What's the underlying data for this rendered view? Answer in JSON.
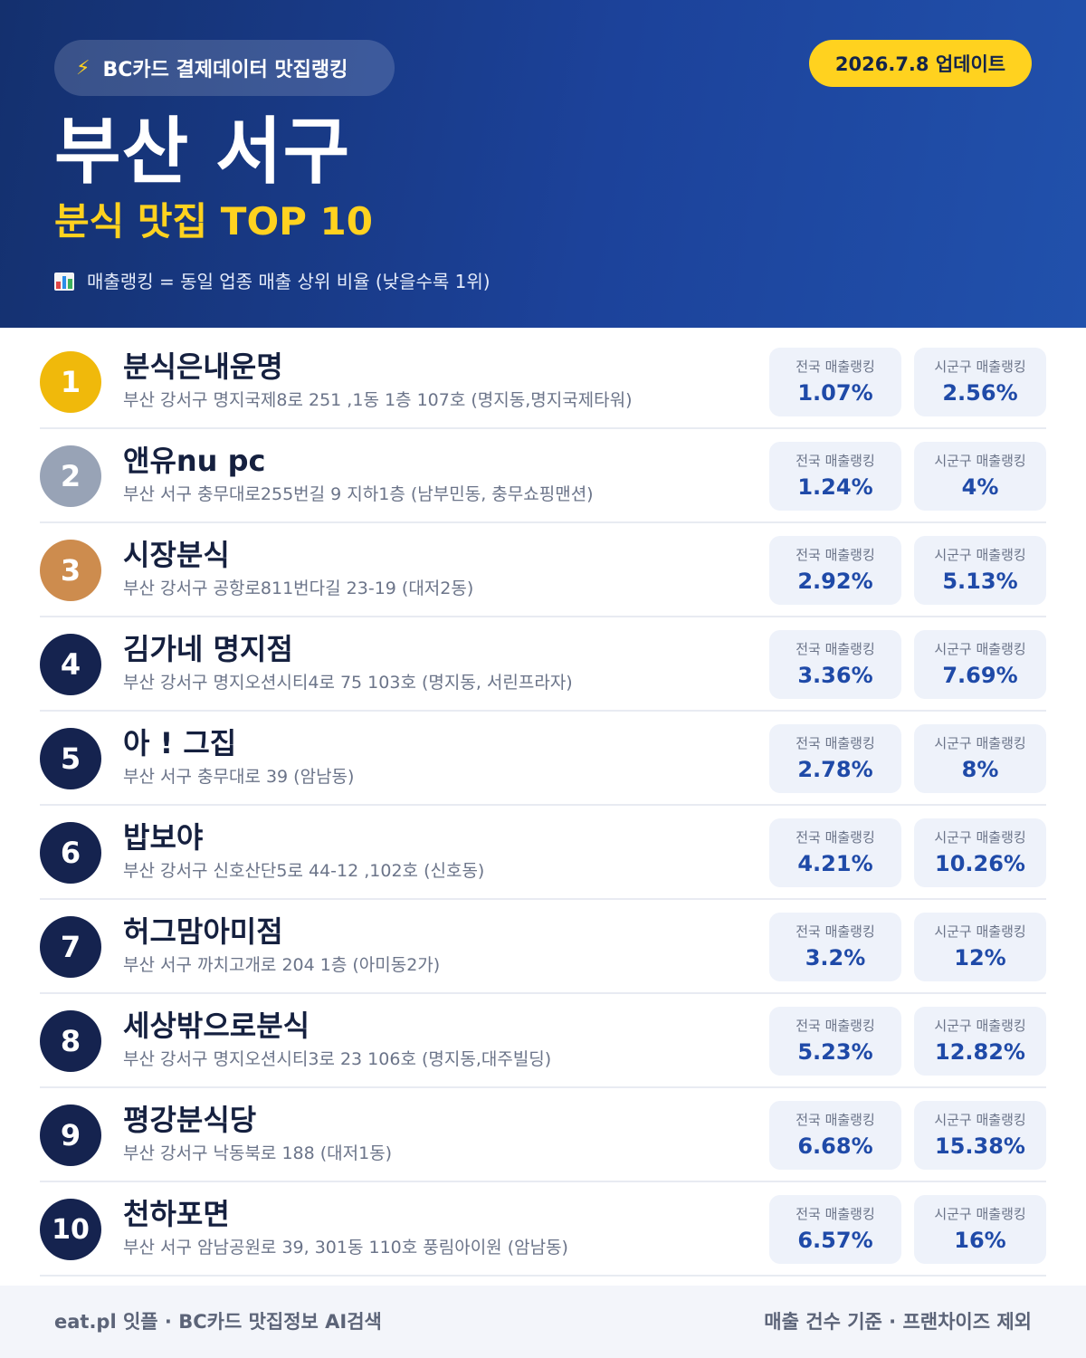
{
  "header": {
    "badge": "BC카드 결제데이터 맛집랭킹",
    "update": "2026.7.8 업데이트",
    "city": "부산 서구",
    "subtitle": "분식 맛집 TOP 10",
    "note": "매출랭킹 = 동일 업종 매출 상위 비율 (낮을수록 1위)"
  },
  "labels": {
    "national": "전국 매출랭킹",
    "regional": "시군구 매출랭킹"
  },
  "colors": {
    "gold": "#f0b90b",
    "silver": "#98a3b6",
    "bronze": "#cd8c4e",
    "navy": "#15234f"
  },
  "items": [
    {
      "rank": "1",
      "name": "분식은내운명",
      "address": "부산 강서구 명지국제8로 251 ,1동 1층 107호 (명지동,명지국제타워)",
      "national": "1.07%",
      "regional": "2.56%"
    },
    {
      "rank": "2",
      "name": "앤유nu pc",
      "address": "부산 서구 충무대로255번길 9 지하1층 (남부민동, 충무쇼핑맨션)",
      "national": "1.24%",
      "regional": "4%"
    },
    {
      "rank": "3",
      "name": "시장분식",
      "address": "부산 강서구 공항로811번다길 23-19 (대저2동)",
      "national": "2.92%",
      "regional": "5.13%"
    },
    {
      "rank": "4",
      "name": "김가네 명지점",
      "address": "부산 강서구 명지오션시티4로 75 103호 (명지동, 서린프라자)",
      "national": "3.36%",
      "regional": "7.69%"
    },
    {
      "rank": "5",
      "name": "아 ! 그집",
      "address": "부산 서구 충무대로 39 (암남동)",
      "national": "2.78%",
      "regional": "8%"
    },
    {
      "rank": "6",
      "name": "밥보야",
      "address": "부산 강서구 신호산단5로 44-12 ,102호 (신호동)",
      "national": "4.21%",
      "regional": "10.26%"
    },
    {
      "rank": "7",
      "name": "허그맘아미점",
      "address": "부산 서구 까치고개로 204 1층 (아미동2가)",
      "national": "3.2%",
      "regional": "12%"
    },
    {
      "rank": "8",
      "name": "세상밖으로분식",
      "address": "부산 강서구 명지오션시티3로 23 106호 (명지동,대주빌딩)",
      "national": "5.23%",
      "regional": "12.82%"
    },
    {
      "rank": "9",
      "name": "평강분식당",
      "address": "부산 강서구 낙동북로 188 (대저1동)",
      "national": "6.68%",
      "regional": "15.38%"
    },
    {
      "rank": "10",
      "name": "천하포면",
      "address": "부산 서구 암남공원로 39, 301동 110호 풍림아이원 (암남동)",
      "national": "6.57%",
      "regional": "16%"
    }
  ],
  "footer": {
    "left": "eat.pl 잇플 · BC카드 맛집정보 AI검색",
    "right": "매출 건수 기준 · 프랜차이즈 제외"
  }
}
